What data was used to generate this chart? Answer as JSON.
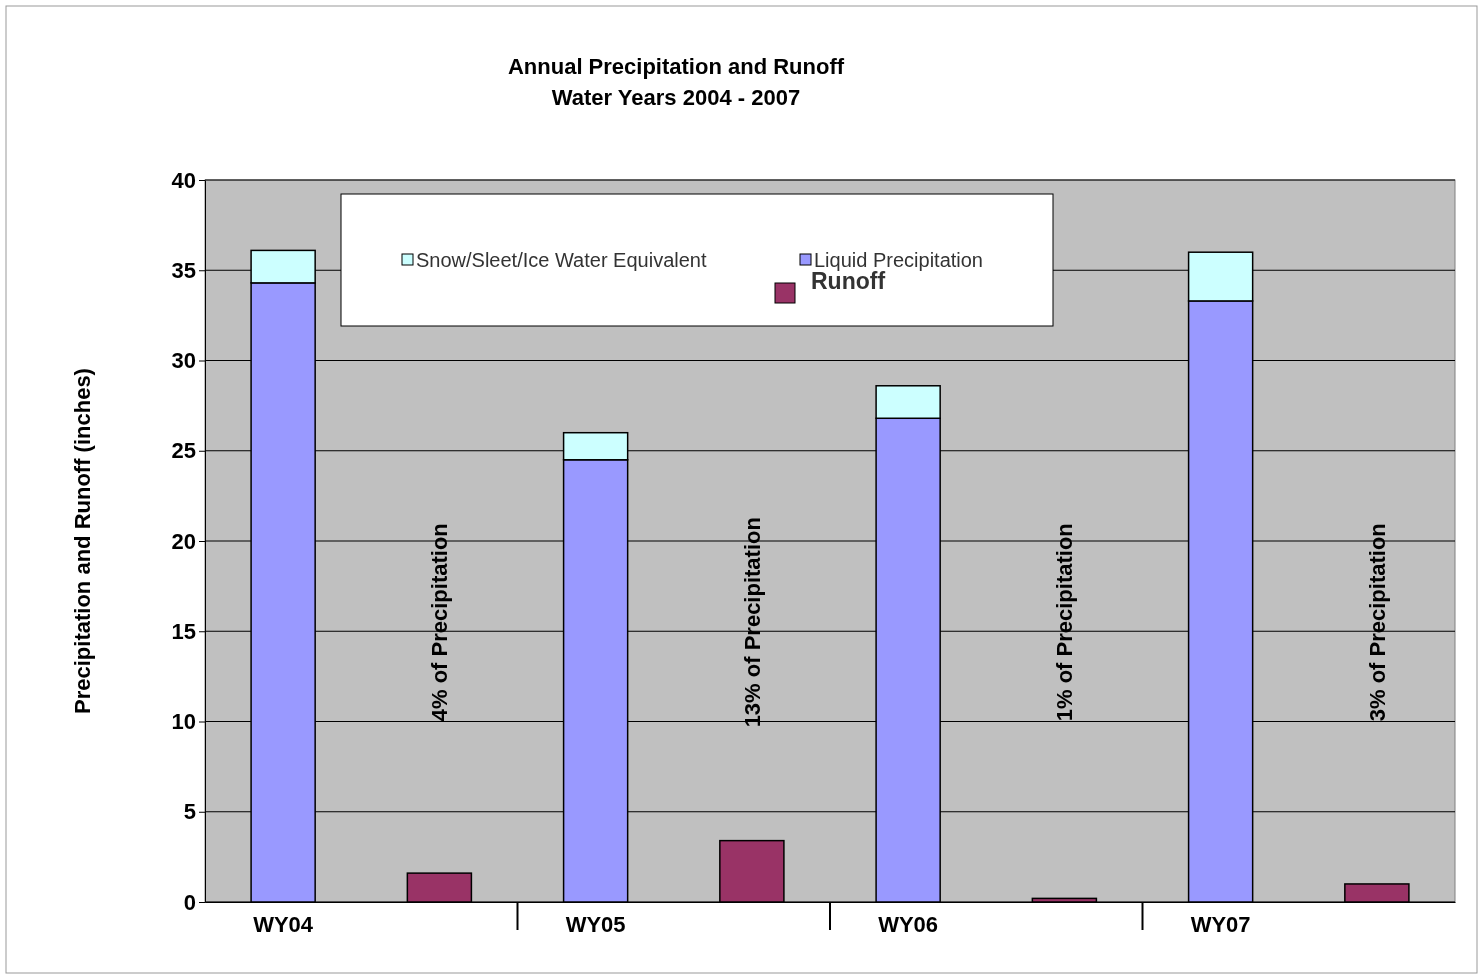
{
  "chart_data": {
    "type": "bar",
    "title": "Annual Precipitation and Runoff\nWater Years 2004 - 2007",
    "ylabel": "Precipitation and Runoff (inches)",
    "categories": [
      "WY04",
      null,
      "WY05",
      null,
      "WY06",
      null,
      "WY07",
      null
    ],
    "series": [
      {
        "name": "Liquid Precipitation",
        "color": "#9999ff",
        "values": [
          34.3,
          null,
          24.5,
          null,
          26.8,
          null,
          33.3,
          null
        ]
      },
      {
        "name": "Snow/Sleet/Ice Water Equivalent",
        "color": "#ccffff",
        "values": [
          1.8,
          null,
          1.5,
          null,
          1.8,
          null,
          2.7,
          null
        ]
      },
      {
        "name": "Runoff",
        "color": "#993366",
        "values": [
          null,
          1.6,
          null,
          3.4,
          null,
          0.2,
          null,
          1.0
        ]
      }
    ],
    "stacked": true,
    "ylim": [
      0,
      40
    ],
    "yticks": [
      0,
      5,
      10,
      15,
      20,
      25,
      30,
      35,
      40
    ],
    "grid": "y",
    "legend": "top",
    "annotations": [
      "4% of Precipitation",
      "13% of Precipitation",
      "1% of Precipitation",
      "3% of Precipitation"
    ]
  }
}
